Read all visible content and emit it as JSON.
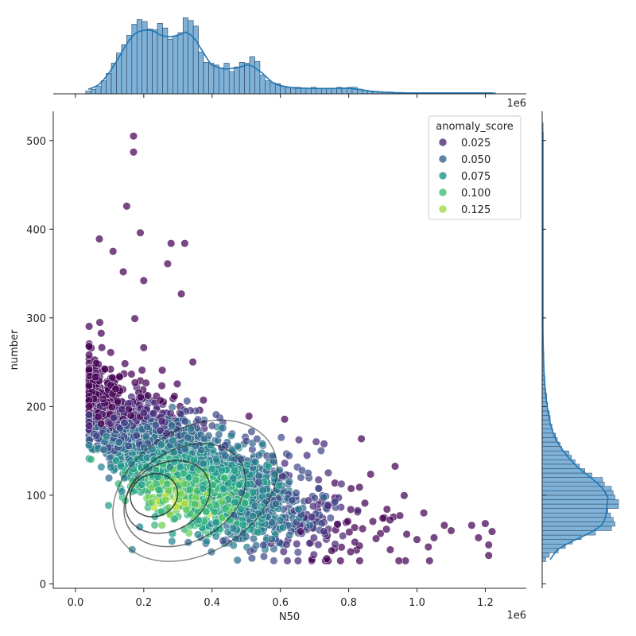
{
  "chart_data": {
    "type": "scatter",
    "xlabel": "N50",
    "ylabel": "number",
    "x_offset_label": "1e6",
    "xlim": [
      -0.065,
      1.32
    ],
    "ylim": [
      -5,
      533
    ],
    "x_ticks": [
      0.0,
      0.2,
      0.4,
      0.6,
      0.8,
      1.0,
      1.2
    ],
    "x_tick_labels": [
      "0.0",
      "0.2",
      "0.4",
      "0.6",
      "0.8",
      "1.0",
      "1.2"
    ],
    "y_ticks": [
      0,
      100,
      200,
      300,
      400,
      500
    ],
    "y_tick_labels": [
      "0",
      "100",
      "200",
      "300",
      "400",
      "500"
    ],
    "grid": false,
    "legend": {
      "title": "anomaly_score",
      "placement": "top-right",
      "entries": [
        {
          "label": "0.025",
          "color": "#5b3a7e"
        },
        {
          "label": "0.050",
          "color": "#3f6f94"
        },
        {
          "label": "0.075",
          "color": "#2e9a94"
        },
        {
          "label": "0.100",
          "color": "#4cc17f"
        },
        {
          "label": "0.125",
          "color": "#a5db4f"
        }
      ]
    },
    "colormap": "viridis",
    "marginal_histograms": true,
    "kde_contours": true,
    "top_hist": {
      "bins_x": [
        0.03,
        0.045,
        0.06,
        0.075,
        0.09,
        0.105,
        0.12,
        0.135,
        0.15,
        0.165,
        0.18,
        0.195,
        0.21,
        0.225,
        0.24,
        0.255,
        0.27,
        0.285,
        0.3,
        0.315,
        0.33,
        0.345,
        0.36,
        0.375,
        0.39,
        0.405,
        0.42,
        0.435,
        0.45,
        0.465,
        0.48,
        0.495,
        0.51,
        0.525,
        0.54,
        0.555,
        0.57,
        0.585,
        0.6,
        0.615,
        0.63,
        0.645,
        0.66,
        0.675,
        0.69,
        0.705,
        0.72,
        0.735,
        0.75,
        0.765,
        0.78,
        0.795,
        0.81,
        0.825,
        0.84,
        0.855,
        0.87,
        0.885,
        0.9,
        0.915,
        0.93,
        0.945,
        0.96,
        0.975,
        0.99,
        1.005,
        1.02,
        1.035,
        1.05,
        1.065,
        1.08,
        1.095,
        1.11,
        1.125,
        1.14,
        1.155,
        1.17,
        1.185,
        1.2,
        1.215
      ],
      "counts": [
        3,
        5,
        8,
        14,
        22,
        33,
        44,
        53,
        63,
        75,
        80,
        78,
        70,
        69,
        76,
        71,
        59,
        62,
        66,
        82,
        79,
        73,
        45,
        34,
        33,
        31,
        28,
        33,
        24,
        29,
        34,
        33,
        40,
        35,
        20,
        14,
        12,
        11,
        8,
        7,
        7,
        7,
        6,
        6,
        7,
        6,
        6,
        6,
        6,
        7,
        6,
        7,
        7,
        5,
        4,
        3,
        2,
        2,
        2,
        2,
        1,
        1,
        1,
        1,
        1,
        1,
        1,
        1,
        1,
        1,
        1,
        1,
        1,
        1,
        1,
        1,
        1,
        1,
        1,
        1
      ]
    },
    "right_hist": {
      "bins_y": [
        25,
        30,
        35,
        40,
        45,
        50,
        55,
        60,
        65,
        70,
        75,
        80,
        85,
        90,
        95,
        100,
        105,
        110,
        115,
        120,
        125,
        130,
        135,
        140,
        145,
        150,
        155,
        160,
        165,
        170,
        175,
        180,
        185,
        190,
        195,
        200,
        205,
        210,
        215,
        220,
        225,
        230,
        235,
        240,
        245,
        250,
        255,
        260,
        270,
        280,
        290,
        300,
        320,
        340,
        360,
        380,
        400,
        420,
        440,
        460,
        480,
        500
      ],
      "counts": [
        4,
        8,
        18,
        26,
        34,
        44,
        60,
        78,
        82,
        80,
        77,
        74,
        86,
        86,
        82,
        80,
        78,
        70,
        68,
        56,
        48,
        42,
        37,
        33,
        30,
        22,
        20,
        17,
        15,
        12,
        11,
        9,
        9,
        8,
        6,
        6,
        5,
        5,
        4,
        3,
        3,
        3,
        2,
        2,
        2,
        2,
        2,
        1,
        1,
        1,
        1,
        1,
        1,
        1,
        1,
        1,
        1,
        1,
        1,
        1,
        1,
        1
      ]
    },
    "points_note": "approx. 2500 points; cloud concentrated N50 0.1-0.5e6, number 50-180"
  }
}
